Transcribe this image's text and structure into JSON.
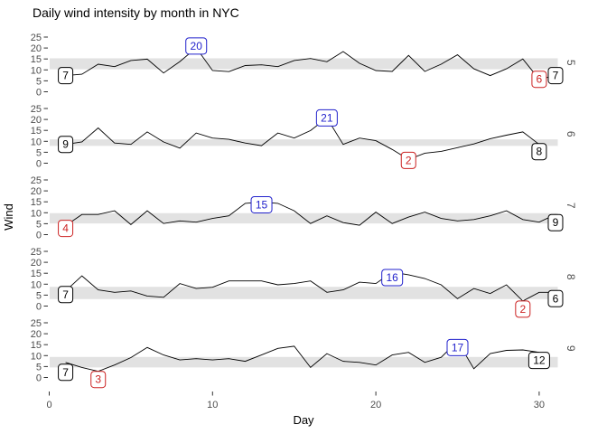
{
  "title": "Daily wind intensity by month in NYC",
  "y_axis": {
    "label": "Wind",
    "ticks": [
      0,
      5,
      10,
      15,
      20,
      25
    ]
  },
  "x_axis": {
    "label": "Day",
    "ticks": [
      0,
      10,
      20,
      30
    ]
  },
  "facet_strip_labels": [
    "5",
    "6",
    "7",
    "8",
    "9"
  ],
  "colors": {
    "label_blue": "#2222CC",
    "label_red": "#CC2222",
    "label_black": "#000000",
    "line": "#000000",
    "band": "#E2E2E2",
    "axis_text": "#4D4D4D",
    "tick_mark": "#333333"
  },
  "chart_data": {
    "type": "line",
    "title": "Daily wind intensity by month in NYC",
    "xlabel": "Day",
    "ylabel": "Wind",
    "xlim": [
      0,
      31
    ],
    "ylim": [
      0,
      25
    ],
    "grid": false,
    "legend": false,
    "facets": [
      {
        "month": "5",
        "band": [
          10.3,
          15.3
        ],
        "values": [
          7.4,
          8.0,
          12.6,
          11.5,
          14.3,
          14.9,
          8.6,
          13.8,
          20.1,
          9.7,
          9.2,
          12.0,
          12.3,
          11.5,
          14.3,
          15.2,
          13.7,
          18.4,
          13.0,
          9.7,
          9.3,
          16.6,
          9.3,
          12.6,
          16.9,
          10.5,
          7.4,
          10.5,
          15.0,
          5.7,
          7.4
        ],
        "labels": [
          {
            "text": "7",
            "color": "black",
            "day": 1,
            "value": 7.4,
            "dy": 0
          },
          {
            "text": "20",
            "color": "blue",
            "day": 9,
            "value": 20.1,
            "dy": -2
          },
          {
            "text": "6",
            "color": "red",
            "day": 30,
            "value": 5.7,
            "dy": 0
          },
          {
            "text": "7",
            "color": "black",
            "day": 31,
            "value": 7.4,
            "dy": 0
          }
        ]
      },
      {
        "month": "6",
        "band": [
          7.9,
          10.9
        ],
        "values": [
          8.6,
          9.7,
          16.1,
          9.2,
          8.6,
          14.3,
          9.7,
          6.9,
          13.8,
          11.5,
          10.9,
          9.2,
          8.0,
          13.8,
          11.5,
          14.9,
          20.7,
          8.6,
          11.5,
          10.3,
          6.3,
          1.7,
          4.6,
          5.4,
          7.1,
          8.8,
          11.2,
          12.8,
          14.3,
          8.6
        ],
        "labels": [
          {
            "text": "9",
            "color": "black",
            "day": 1,
            "value": 8.6,
            "dy": 0
          },
          {
            "text": "21",
            "color": "blue",
            "day": 17,
            "value": 20.7,
            "dy": 0
          },
          {
            "text": "2",
            "color": "red",
            "day": 22,
            "value": 1.7,
            "dy": 1
          },
          {
            "text": "8",
            "color": "black",
            "day": 30,
            "value": 8.6,
            "dy": 8
          }
        ]
      },
      {
        "month": "7",
        "band": [
          5.1,
          9.8
        ],
        "values": [
          4.1,
          9.2,
          9.2,
          10.9,
          4.6,
          10.9,
          5.1,
          6.3,
          5.7,
          7.4,
          8.6,
          14.3,
          14.9,
          14.3,
          10.9,
          5.1,
          8.6,
          5.5,
          4.3,
          10.3,
          5.1,
          8.0,
          10.3,
          7.4,
          6.3,
          6.9,
          8.6,
          10.9,
          6.9,
          5.7,
          9.2
        ],
        "labels": [
          {
            "text": "4",
            "color": "red",
            "day": 1,
            "value": 4.1,
            "dy": 3
          },
          {
            "text": "15",
            "color": "blue",
            "day": 13,
            "value": 14.9,
            "dy": 3
          },
          {
            "text": "9",
            "color": "black",
            "day": 31,
            "value": 9.2,
            "dy": 9
          }
        ]
      },
      {
        "month": "8",
        "band": [
          3.2,
          8.8
        ],
        "values": [
          6.9,
          13.8,
          7.4,
          6.3,
          6.9,
          4.6,
          4.0,
          10.3,
          8.0,
          8.6,
          11.5,
          11.5,
          11.5,
          9.7,
          10.3,
          11.5,
          6.3,
          7.4,
          10.9,
          10.3,
          15.5,
          14.3,
          12.6,
          9.7,
          3.4,
          8.0,
          5.7,
          9.7,
          2.3,
          6.3,
          6.3
        ],
        "labels": [
          {
            "text": "7",
            "color": "black",
            "day": 1,
            "value": 6.9,
            "dy": 4
          },
          {
            "text": "16",
            "color": "blue",
            "day": 21,
            "value": 15.5,
            "dy": 6
          },
          {
            "text": "2",
            "color": "red",
            "day": 29,
            "value": 2.3,
            "dy": 9
          },
          {
            "text": "6",
            "color": "black",
            "day": 31,
            "value": 6.3,
            "dy": 7
          }
        ]
      },
      {
        "month": "9",
        "band": [
          4.6,
          9.4
        ],
        "values": [
          6.9,
          4.6,
          2.8,
          5.7,
          9.1,
          13.7,
          10.3,
          8.0,
          8.6,
          8.0,
          8.6,
          7.4,
          10.3,
          13.3,
          14.3,
          4.6,
          10.9,
          7.4,
          6.9,
          5.7,
          10.3,
          11.5,
          6.9,
          9.2,
          16.6,
          4.0,
          10.9,
          12.4,
          12.6,
          11.5
        ],
        "labels": [
          {
            "text": "7",
            "color": "black",
            "day": 1,
            "value": 6.9,
            "dy": 11
          },
          {
            "text": "3",
            "color": "red",
            "day": 3,
            "value": 2.8,
            "dy": 9
          },
          {
            "text": "17",
            "color": "blue",
            "day": 25,
            "value": 16.6,
            "dy": 7
          },
          {
            "text": "12",
            "color": "black",
            "day": 30,
            "value": 11.5,
            "dy": 9
          }
        ]
      }
    ]
  }
}
